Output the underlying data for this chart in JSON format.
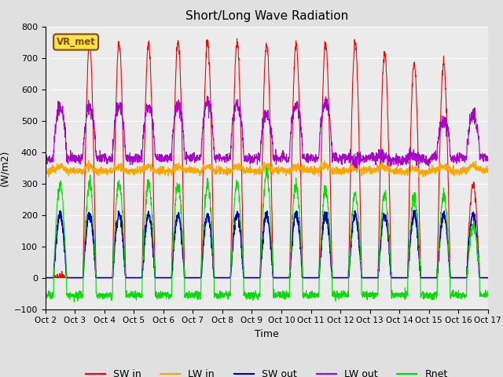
{
  "title": "Short/Long Wave Radiation",
  "xlabel": "Time",
  "ylabel": "(W/m2)",
  "ylim": [
    -100,
    800
  ],
  "xlim": [
    0,
    15
  ],
  "xtick_labels": [
    "Oct 2",
    "Oct 3",
    "Oct 4",
    "Oct 5",
    "Oct 6",
    "Oct 7",
    "Oct 8",
    "Oct 9",
    "Oct 10",
    "Oct 11",
    "Oct 12",
    "Oct 13",
    "Oct 14",
    "Oct 15",
    "Oct 16",
    "Oct 17"
  ],
  "annotation": "VR_met",
  "legend_labels": [
    "SW in",
    "LW in",
    "SW out",
    "LW out",
    "Rnet"
  ],
  "colors": {
    "SW_in": "#ff0000",
    "LW_in": "#ffa500",
    "SW_out": "#0000bb",
    "LW_out": "#aa00cc",
    "Rnet": "#00dd00"
  },
  "sw_in_peaks": [
    0,
    740,
    750,
    745,
    755,
    748,
    750,
    745,
    745,
    750,
    748,
    720,
    680,
    680,
    300,
    0
  ],
  "lw_out_day_peaks": [
    540,
    540,
    545,
    548,
    548,
    560,
    550,
    515,
    550,
    555,
    380,
    390,
    395,
    500,
    515,
    0
  ],
  "rnet_day_peaks": [
    300,
    300,
    300,
    300,
    300,
    300,
    300,
    330,
    295,
    280,
    270,
    265,
    260,
    260,
    165,
    0
  ],
  "sw_out_day_level": 200,
  "lw_in_base": 340,
  "lw_out_base": 380,
  "rnet_night": -55,
  "background_color": "#e0e0e0",
  "plot_bg_color": "#ebebeb"
}
